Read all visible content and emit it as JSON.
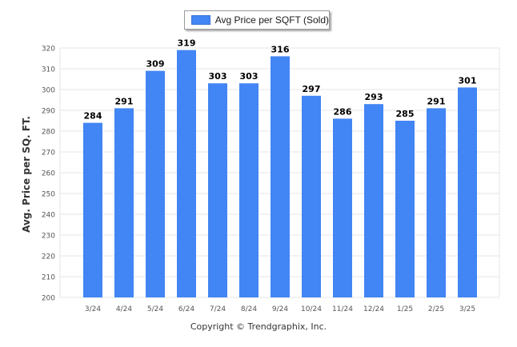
{
  "legend": {
    "label": "Avg Price per SQFT (Sold)"
  },
  "footer": {
    "copyright": "Copyright © Trendgraphix, Inc."
  },
  "colors": {
    "bar": "#4285f4",
    "grid": "#e6e6e6",
    "axis_text": "#555555",
    "data_label": "#000000"
  },
  "chart_data": {
    "type": "bar",
    "title": "",
    "xlabel": "",
    "ylabel": "Avg. Price per SQ. FT.",
    "categories": [
      "3/24",
      "4/24",
      "5/24",
      "6/24",
      "7/24",
      "8/24",
      "9/24",
      "10/24",
      "11/24",
      "12/24",
      "1/25",
      "2/25",
      "3/25"
    ],
    "series": [
      {
        "name": "Avg Price per SQFT (Sold)",
        "values": [
          284,
          291,
          309,
          319,
          303,
          303,
          316,
          297,
          286,
          293,
          285,
          291,
          301
        ]
      }
    ],
    "ylim": [
      200,
      320
    ],
    "yticks": [
      200,
      210,
      220,
      230,
      240,
      250,
      260,
      270,
      280,
      290,
      300,
      310,
      320
    ],
    "grid": true,
    "legend_position": "top-center",
    "data_labels": true
  }
}
